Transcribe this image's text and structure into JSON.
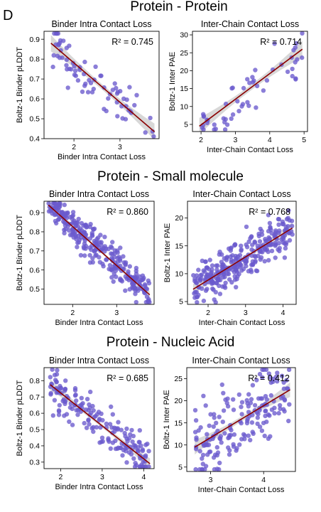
{
  "panel_letter": "D",
  "sections": [
    {
      "title": "Protein - Protein"
    },
    {
      "title": "Protein - Small molecule"
    },
    {
      "title": "Protein - Nucleic Acid"
    }
  ],
  "colors": {
    "points": "#6a5acd",
    "fit_line": "#8b0000",
    "confidence_band": "#a9a9a9"
  },
  "chart_data": [
    {
      "id": "pp_intra",
      "type": "scatter",
      "title": "Binder Intra Contact Loss",
      "xlabel": "Binder Intra Contact Loss",
      "ylabel": "Boltz-1 Binder pLDDT",
      "r2": "R² = 0.745",
      "xlim": [
        1.35,
        3.85
      ],
      "ylim": [
        0.4,
        0.94
      ],
      "xticks": [
        2,
        3
      ],
      "yticks": [
        0.4,
        0.5,
        0.6,
        0.7,
        0.8,
        0.9
      ],
      "ytick_labels": [
        "0.4",
        "0.5",
        "0.6",
        "0.7",
        "0.8",
        "0.9"
      ],
      "fit": [
        [
          1.5,
          0.88
        ],
        [
          3.75,
          0.435
        ]
      ],
      "band_width": 0.025,
      "npoints": 75,
      "seed": 11,
      "x_range": [
        1.5,
        3.75
      ],
      "noise": 0.06,
      "points": []
    },
    {
      "id": "pp_inter",
      "type": "scatter",
      "title": "Inter-Chain Contact Loss",
      "xlabel": "Inter-Chain Contact Loss",
      "ylabel": "Boltz-1 Inter PAE",
      "r2": "R² = 0.714",
      "xlim": [
        1.75,
        5.1
      ],
      "ylim": [
        3,
        31
      ],
      "xticks": [
        2,
        3,
        4,
        5
      ],
      "yticks": [
        5,
        10,
        15,
        20,
        25,
        30
      ],
      "ytick_labels": [
        "5",
        "10",
        "15",
        "20",
        "25",
        "30"
      ],
      "fit": [
        [
          1.95,
          4.5
        ],
        [
          4.95,
          26
        ]
      ],
      "band_width": 1.4,
      "npoints": 55,
      "seed": 23,
      "x_range": [
        1.95,
        4.95
      ],
      "noise": 3.2,
      "points": []
    },
    {
      "id": "psm_intra",
      "type": "scatter",
      "title": "Binder Intra Contact Loss",
      "xlabel": "Binder Intra Contact Loss",
      "ylabel": "Boltz-1 Binder pLDDT",
      "r2": "R² = 0.860",
      "xlim": [
        1.35,
        3.85
      ],
      "ylim": [
        0.42,
        0.96
      ],
      "xticks": [
        2,
        3
      ],
      "yticks": [
        0.5,
        0.6,
        0.7,
        0.8,
        0.9
      ],
      "ytick_labels": [
        "0.5",
        "0.6",
        "0.7",
        "0.8",
        "0.9"
      ],
      "fit": [
        [
          1.45,
          0.94
        ],
        [
          3.75,
          0.47
        ]
      ],
      "band_width": 0.012,
      "npoints": 300,
      "seed": 37,
      "x_range": [
        1.45,
        3.75
      ],
      "noise": 0.045,
      "points": []
    },
    {
      "id": "psm_inter",
      "type": "scatter",
      "title": "Inter-Chain Contact Loss",
      "xlabel": "Inter-Chain Contact Loss",
      "ylabel": "Boltz-1 Inter PAE",
      "r2": "R² = 0.768",
      "xlim": [
        1.45,
        4.35
      ],
      "ylim": [
        4.5,
        23
      ],
      "xticks": [
        2,
        3,
        4
      ],
      "yticks": [
        5,
        10,
        15,
        20
      ],
      "ytick_labels": [
        "5",
        "10",
        "15",
        "20"
      ],
      "fit": [
        [
          1.6,
          7.2
        ],
        [
          4.25,
          18.2
        ]
      ],
      "band_width": 0.6,
      "npoints": 300,
      "seed": 51,
      "x_range": [
        1.6,
        4.25
      ],
      "noise": 1.8,
      "points": []
    },
    {
      "id": "pna_intra",
      "type": "scatter",
      "title": "Binder Intra Contact Loss",
      "xlabel": "Binder Intra Contact Loss",
      "ylabel": "Boltz-1 Binder pLDDT",
      "r2": "R² = 0.685",
      "xlim": [
        1.6,
        4.25
      ],
      "ylim": [
        0.26,
        0.88
      ],
      "xticks": [
        2,
        3,
        4
      ],
      "yticks": [
        0.3,
        0.4,
        0.5,
        0.6,
        0.7,
        0.8
      ],
      "ytick_labels": [
        "0.3",
        "0.4",
        "0.5",
        "0.6",
        "0.7",
        "0.8"
      ],
      "fit": [
        [
          1.75,
          0.775
        ],
        [
          4.15,
          0.29
        ]
      ],
      "band_width": 0.02,
      "npoints": 180,
      "seed": 67,
      "x_range": [
        1.75,
        4.15
      ],
      "noise": 0.06,
      "points": []
    },
    {
      "id": "pna_inter",
      "type": "scatter",
      "title": "Inter-Chain Contact Loss",
      "xlabel": "Inter-Chain Contact Loss",
      "ylabel": "Boltz-1 Inter PAE",
      "r2": "R² = 0.412",
      "xlim": [
        2.55,
        4.6
      ],
      "ylim": [
        4,
        27.5
      ],
      "xticks": [
        3,
        4
      ],
      "yticks": [
        5,
        10,
        15,
        20,
        25
      ],
      "ytick_labels": [
        "5",
        "10",
        "15",
        "20",
        "25"
      ],
      "fit": [
        [
          2.7,
          9.5
        ],
        [
          4.5,
          22.5
        ]
      ],
      "band_width": 1.0,
      "npoints": 180,
      "seed": 83,
      "x_range": [
        2.7,
        4.5
      ],
      "noise": 4.2,
      "points": []
    }
  ]
}
